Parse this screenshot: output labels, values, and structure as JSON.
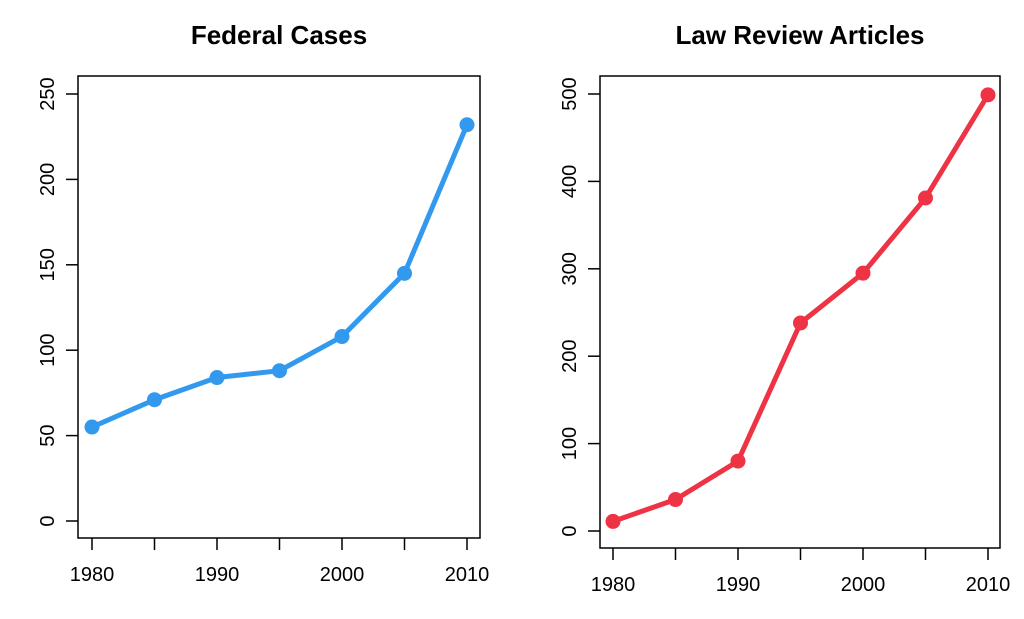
{
  "chart_data": [
    {
      "type": "line",
      "title": "Federal Cases",
      "xlabel": "",
      "ylabel": "",
      "x": [
        1980,
        1985,
        1990,
        1995,
        2000,
        2005,
        2010
      ],
      "series": [
        {
          "values": [
            55,
            71,
            84,
            88,
            108,
            145,
            232
          ],
          "color": "#3399ee"
        }
      ],
      "xlim": [
        1980,
        2010
      ],
      "ylim": [
        0,
        250
      ],
      "xticks": [
        1980,
        1985,
        1990,
        1995,
        2000,
        2005,
        2010
      ],
      "xtick_labels": [
        "1980",
        "",
        "1990",
        "",
        "2000",
        "",
        "2010"
      ],
      "yticks": [
        0,
        50,
        100,
        150,
        200,
        250
      ],
      "ytick_labels": [
        "0",
        "50",
        "100",
        "150",
        "200",
        "250"
      ],
      "grid": false,
      "markers": "filled-circle"
    },
    {
      "type": "line",
      "title": "Law Review Articles",
      "xlabel": "",
      "ylabel": "",
      "x": [
        1980,
        1985,
        1990,
        1995,
        2000,
        2005,
        2010
      ],
      "series": [
        {
          "values": [
            11,
            36,
            80,
            238,
            295,
            381,
            499
          ],
          "color": "#ee3344"
        }
      ],
      "xlim": [
        1980,
        2010
      ],
      "ylim": [
        0,
        500
      ],
      "xticks": [
        1980,
        1985,
        1990,
        1995,
        2000,
        2005,
        2010
      ],
      "xtick_labels": [
        "1980",
        "",
        "1990",
        "",
        "2000",
        "",
        "2010"
      ],
      "yticks": [
        0,
        100,
        200,
        300,
        400,
        500
      ],
      "ytick_labels": [
        "0",
        "100",
        "200",
        "300",
        "400",
        "500"
      ],
      "grid": false,
      "markers": "filled-circle"
    }
  ]
}
